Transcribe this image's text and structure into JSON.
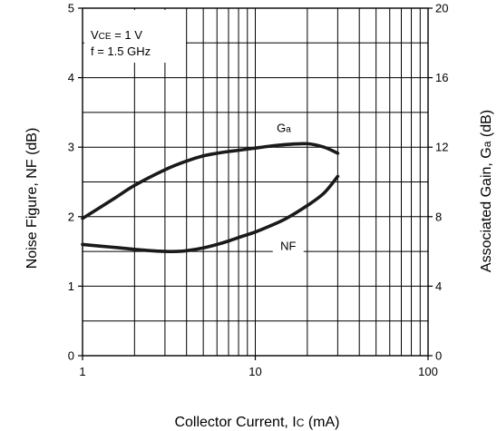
{
  "chart_data": {
    "type": "line",
    "xlabel": {
      "main": "Collector Current, I",
      "sub": "C",
      "unit": " (mA)"
    },
    "ylabel_left": "Noise Figure, NF (dB)",
    "ylabel_right": {
      "main": "Associated Gain, G",
      "sub": "a",
      "unit": " (dB)"
    },
    "x_scale": "log",
    "xlim": [
      1,
      100
    ],
    "x_ticks": [
      1,
      10,
      100
    ],
    "ylim_left": [
      0,
      5
    ],
    "y_ticks_left": [
      0,
      1,
      2,
      3,
      4,
      5
    ],
    "ylim_right": [
      0,
      20
    ],
    "y_ticks_right": [
      0,
      4,
      8,
      12,
      16,
      20
    ],
    "grid": true,
    "conditions": [
      {
        "main": "V",
        "sub": "CE",
        "rest": " = 1 V"
      },
      {
        "main": "f = 1.5 GHz",
        "sub": "",
        "rest": ""
      }
    ],
    "series": [
      {
        "name": "NF",
        "axis": "left",
        "label_text": "NF",
        "x": [
          1,
          1.5,
          2,
          2.5,
          3,
          3.5,
          4,
          5,
          6,
          7,
          8,
          10,
          12,
          15,
          20,
          25,
          30
        ],
        "y": [
          1.6,
          1.56,
          1.53,
          1.51,
          1.5,
          1.5,
          1.51,
          1.55,
          1.6,
          1.65,
          1.7,
          1.78,
          1.86,
          1.97,
          2.16,
          2.34,
          2.58
        ]
      },
      {
        "name": "Ga",
        "axis": "right",
        "label_main": "G",
        "label_sub": "a",
        "x": [
          1,
          1.5,
          2,
          3,
          4,
          5,
          6,
          7,
          8,
          10,
          12,
          15,
          20,
          25,
          30
        ],
        "y": [
          7.9,
          9.0,
          9.8,
          10.7,
          11.2,
          11.5,
          11.65,
          11.75,
          11.82,
          11.95,
          12.05,
          12.15,
          12.2,
          12.0,
          11.65
        ]
      }
    ]
  }
}
